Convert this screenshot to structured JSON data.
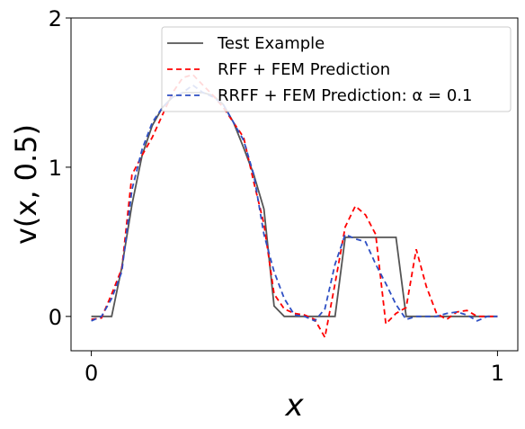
{
  "chart_data": {
    "type": "line",
    "xlabel": "x",
    "ylabel": "v(x, 0.5)",
    "xlim": [
      -0.05,
      1.05
    ],
    "ylim": [
      -0.23,
      2.0
    ],
    "xticks": [
      0,
      1
    ],
    "xtick_labels": [
      "0",
      "1"
    ],
    "yticks": [
      0,
      1,
      2
    ],
    "ytick_labels": [
      "0",
      "1",
      "2"
    ],
    "grid": false,
    "legend_position": "top-right",
    "series": [
      {
        "name": "Test Example",
        "color": "#555555",
        "dash": "solid",
        "x": [
          0,
          0.05,
          0.075,
          0.1,
          0.125,
          0.15,
          0.175,
          0.2,
          0.225,
          0.25,
          0.275,
          0.3,
          0.325,
          0.35,
          0.375,
          0.4,
          0.425,
          0.45,
          0.475,
          0.5,
          0.525,
          0.55,
          0.575,
          0.6,
          0.625,
          0.65,
          0.675,
          0.7,
          0.725,
          0.75,
          0.775,
          0.8,
          0.825,
          0.85,
          0.875,
          0.9,
          0.925,
          0.95,
          0.975,
          1.0
        ],
        "y": [
          0,
          0,
          0.33,
          0.75,
          1.08,
          1.28,
          1.4,
          1.47,
          1.5,
          1.5,
          1.5,
          1.48,
          1.42,
          1.3,
          1.13,
          0.95,
          0.72,
          0.07,
          0,
          0,
          0,
          0,
          0,
          0,
          0.53,
          0.53,
          0.53,
          0.53,
          0.53,
          0.53,
          0,
          0,
          0,
          0,
          0,
          0,
          0,
          0,
          0,
          0
        ]
      },
      {
        "name": "RFF + FEM Prediction",
        "color": "#ff0000",
        "dash": "6,4",
        "x": [
          0,
          0.025,
          0.05,
          0.075,
          0.1,
          0.125,
          0.15,
          0.175,
          0.2,
          0.225,
          0.25,
          0.275,
          0.3,
          0.325,
          0.35,
          0.375,
          0.4,
          0.425,
          0.45,
          0.475,
          0.5,
          0.525,
          0.55,
          0.575,
          0.6,
          0.625,
          0.65,
          0.675,
          0.7,
          0.725,
          0.75,
          0.775,
          0.8,
          0.825,
          0.85,
          0.875,
          0.9,
          0.925,
          0.95,
          0.975,
          1.0
        ],
        "y": [
          -0.02,
          -0.01,
          0.15,
          0.32,
          0.95,
          1.08,
          1.2,
          1.35,
          1.5,
          1.6,
          1.62,
          1.55,
          1.48,
          1.4,
          1.3,
          1.2,
          0.9,
          0.62,
          0.15,
          0.05,
          0.02,
          0.01,
          -0.02,
          -0.14,
          0.22,
          0.6,
          0.74,
          0.68,
          0.55,
          -0.05,
          0.02,
          0.06,
          0.45,
          0.2,
          0.02,
          -0.02,
          0.03,
          0.04,
          0.0,
          0.0,
          0.0
        ]
      },
      {
        "name": "RRFF + FEM Prediction: α = 0.1",
        "color": "#2e4fc4",
        "dash": "6,4",
        "x": [
          0,
          0.025,
          0.05,
          0.075,
          0.1,
          0.125,
          0.15,
          0.175,
          0.2,
          0.225,
          0.25,
          0.275,
          0.3,
          0.325,
          0.35,
          0.375,
          0.4,
          0.425,
          0.45,
          0.475,
          0.5,
          0.525,
          0.55,
          0.575,
          0.6,
          0.625,
          0.65,
          0.675,
          0.7,
          0.725,
          0.75,
          0.775,
          0.8,
          0.825,
          0.85,
          0.875,
          0.9,
          0.925,
          0.95,
          0.975,
          1.0
        ],
        "y": [
          -0.03,
          0.0,
          0.12,
          0.3,
          0.85,
          1.12,
          1.3,
          1.4,
          1.47,
          1.5,
          1.55,
          1.5,
          1.47,
          1.42,
          1.3,
          1.18,
          0.95,
          0.55,
          0.3,
          0.12,
          0.01,
          0.0,
          -0.03,
          0.05,
          0.35,
          0.55,
          0.52,
          0.5,
          0.35,
          0.22,
          0.08,
          -0.02,
          0.0,
          0.0,
          0.0,
          0.02,
          0.03,
          0.01,
          -0.03,
          0.0,
          0.0
        ]
      }
    ]
  }
}
